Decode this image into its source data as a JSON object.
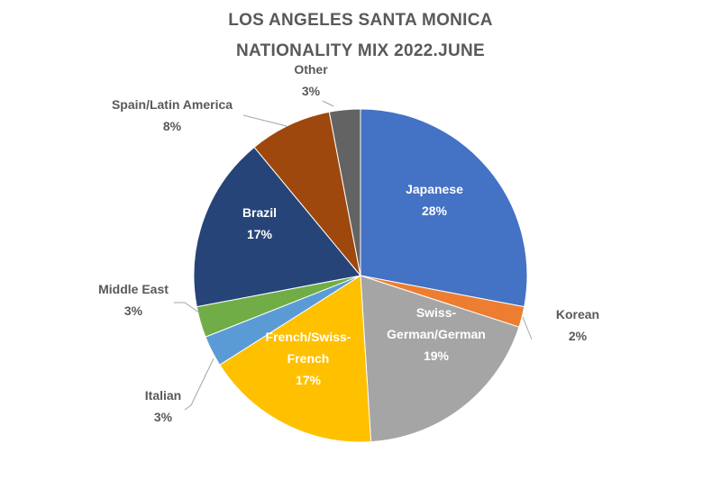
{
  "chart_data": {
    "type": "pie",
    "title_lines": [
      "LOS ANGELES SANTA MONICA",
      "NATIONALITY MIX 2022.JUNE"
    ],
    "slices": [
      {
        "label": [
          "Japanese"
        ],
        "value": 28,
        "display": "28%",
        "color": "#4472C4"
      },
      {
        "label": [
          "Korean"
        ],
        "value": 2,
        "display": "2%",
        "color": "#ED7D31"
      },
      {
        "label": [
          "Swiss-",
          "German/German"
        ],
        "value": 19,
        "display": "19%",
        "color": "#A5A5A5"
      },
      {
        "label": [
          "French/Swiss-",
          "French"
        ],
        "value": 17,
        "display": "17%",
        "color": "#FFC000"
      },
      {
        "label": [
          "Italian"
        ],
        "value": 3,
        "display": "3%",
        "color": "#5B9BD5"
      },
      {
        "label": [
          "Middle East"
        ],
        "value": 3,
        "display": "3%",
        "color": "#70AD47"
      },
      {
        "label": [
          "Brazil"
        ],
        "value": 17,
        "display": "17%",
        "color": "#264478"
      },
      {
        "label": [
          "Spain/Latin America"
        ],
        "value": 8,
        "display": "8%",
        "color": "#9E480E"
      },
      {
        "label": [
          "Other"
        ],
        "value": 3,
        "display": "3%",
        "color": "#636363"
      }
    ],
    "start_angle": "12 o'clock",
    "direction": "clockwise",
    "legend": "none"
  }
}
